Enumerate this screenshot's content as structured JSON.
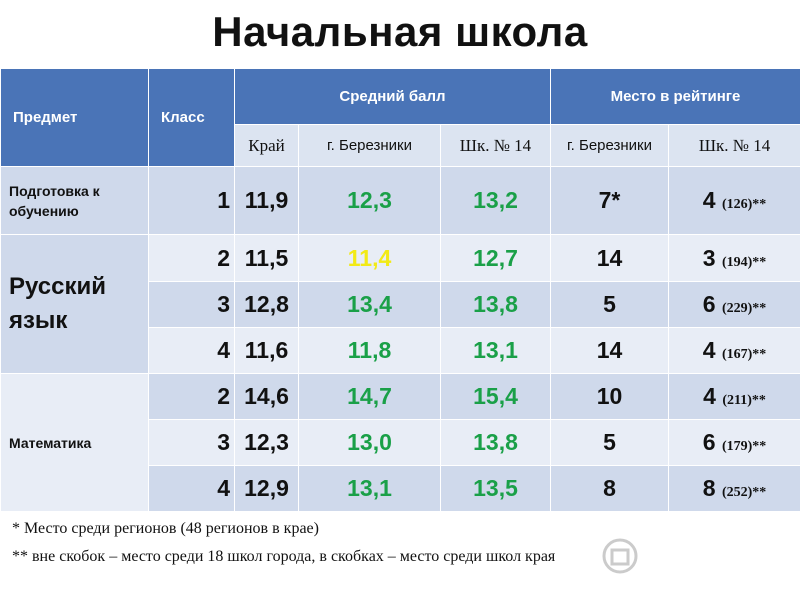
{
  "title": "Начальная школа",
  "headers": {
    "subject": "Предмет",
    "class": "Класс",
    "avg_score": "Средний балл",
    "rating": "Место в рейтинге",
    "sub": [
      "Край",
      "г. Березники",
      "Шк. № 14",
      "г. Березники",
      "Шк. № 14"
    ]
  },
  "subjects": {
    "prep": "Подготовка к обучению",
    "russian": "Русский язык",
    "math": "Математика"
  },
  "rows": [
    {
      "class": "1",
      "kray": "11,9",
      "city": "12,3",
      "school": "13,2",
      "rank_city": "7*",
      "rank_school": "4",
      "rank_school_paren": "(126)**"
    },
    {
      "class": "2",
      "kray": "11,5",
      "city": "11,4",
      "school": "12,7",
      "rank_city": "14",
      "rank_school": "3",
      "rank_school_paren": "(194)**"
    },
    {
      "class": "3",
      "kray": "12,8",
      "city": "13,4",
      "school": "13,8",
      "rank_city": "5",
      "rank_school": "6",
      "rank_school_paren": "(229)**"
    },
    {
      "class": "4",
      "kray": "11,6",
      "city": "11,8",
      "school": "13,1",
      "rank_city": "14",
      "rank_school": "4",
      "rank_school_paren": "(167)**"
    },
    {
      "class": "2",
      "kray": "14,6",
      "city": "14,7",
      "school": "15,4",
      "rank_city": "10",
      "rank_school": "4",
      "rank_school_paren": "(211)**"
    },
    {
      "class": "3",
      "kray": "12,3",
      "city": "13,0",
      "school": "13,8",
      "rank_city": "5",
      "rank_school": "6",
      "rank_school_paren": "(179)**"
    },
    {
      "class": "4",
      "kray": "12,9",
      "city": "13,1",
      "school": "13,5",
      "rank_city": "8",
      "rank_school": "8",
      "rank_school_paren": "(252)**"
    }
  ],
  "notes": {
    "note1": "*  Место среди регионов (48 регионов в крае)",
    "note2": "**  вне скобок – место среди 18 школ города, в скобках – место среди школ края"
  },
  "colors": {
    "header": "#4a74b7",
    "row_dark": "#cfd9eb",
    "row_light": "#e8edf6",
    "green": "#1aa048",
    "yellow": "#f2ea16"
  }
}
